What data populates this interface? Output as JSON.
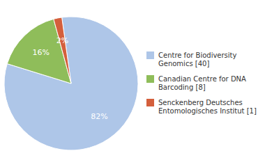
{
  "chart_data": {
    "type": "pie",
    "categories": [
      "Centre for Biodiversity\nGenomics [40]",
      "Canadian Centre for DNA\nBarcoding [8]",
      "Senckenberg Deutsches\nEntomologisches Institut [1]"
    ],
    "values": [
      82,
      16,
      2
    ],
    "value_labels": [
      "82%",
      "16%",
      "2%"
    ],
    "colors": [
      "#aec6e8",
      "#8fbd5a",
      "#d45f3c"
    ],
    "data_labels": true,
    "legend": "right"
  }
}
